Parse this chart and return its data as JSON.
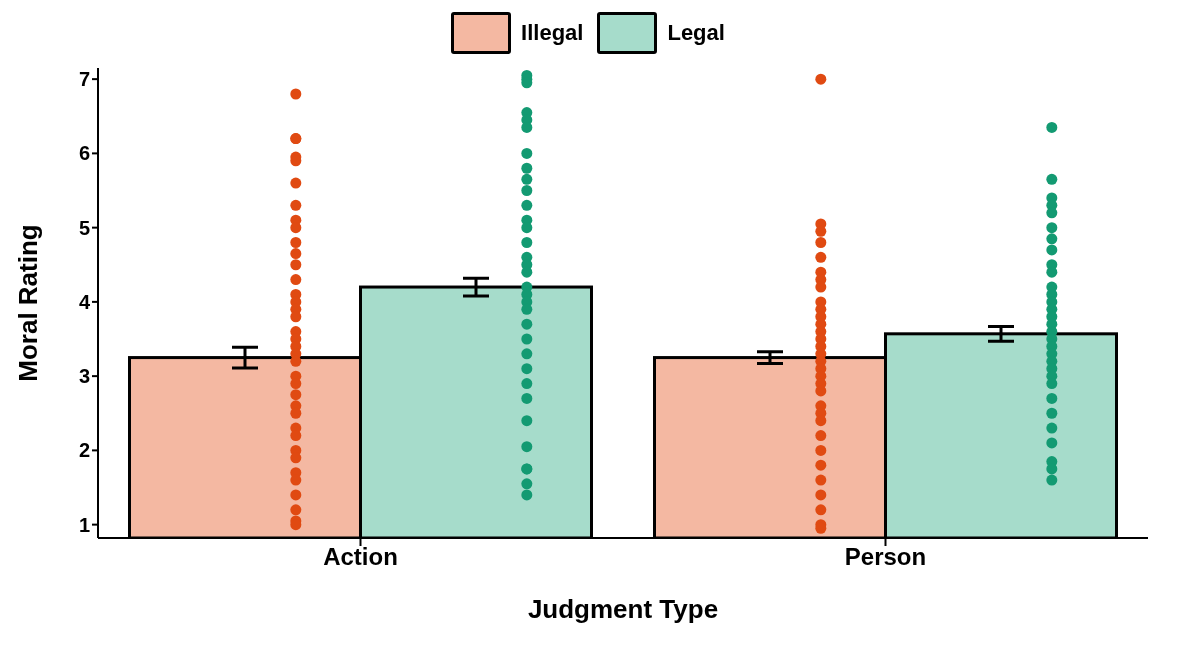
{
  "chart_data": {
    "type": "bar",
    "xlabel": "Judgment Type",
    "ylabel": "Moral Rating",
    "categories": [
      "Action",
      "Person"
    ],
    "ylim": [
      0.82,
      7.15
    ],
    "yticks": [
      1,
      2,
      3,
      4,
      5,
      6,
      7
    ],
    "grid": false,
    "legend": "top",
    "series": [
      {
        "name": "Illegal",
        "type": "bar",
        "color": "#f4b8a2",
        "values": [
          3.25,
          3.25
        ],
        "errors": [
          0.14,
          0.08
        ]
      },
      {
        "name": "Legal",
        "type": "bar",
        "color": "#a6dccb",
        "values": [
          4.2,
          3.57
        ],
        "errors": [
          0.12,
          0.1
        ]
      },
      {
        "type": "scatter",
        "color": "#e04a12",
        "marker": "circle",
        "x": [
          "Action",
          "Action",
          "Action",
          "Action",
          "Action",
          "Action",
          "Action",
          "Action",
          "Action",
          "Action",
          "Action",
          "Action",
          "Action",
          "Action",
          "Action",
          "Action",
          "Action",
          "Action",
          "Action",
          "Action",
          "Action",
          "Action",
          "Action",
          "Action",
          "Action",
          "Action",
          "Action",
          "Action",
          "Action",
          "Action",
          "Action",
          "Action",
          "Action",
          "Action",
          "Action",
          "Action",
          "Action",
          "Person",
          "Person",
          "Person",
          "Person",
          "Person",
          "Person",
          "Person",
          "Person",
          "Person",
          "Person",
          "Person",
          "Person",
          "Person",
          "Person",
          "Person",
          "Person",
          "Person",
          "Person",
          "Person",
          "Person",
          "Person",
          "Person",
          "Person",
          "Person",
          "Person",
          "Person",
          "Person",
          "Person",
          "Person",
          "Person",
          "Person",
          "Person"
        ],
        "values": [
          6.8,
          6.2,
          6.2,
          5.95,
          5.9,
          5.6,
          5.3,
          5.1,
          5.0,
          4.8,
          4.65,
          4.5,
          4.3,
          4.1,
          4.0,
          3.9,
          3.8,
          3.6,
          3.5,
          3.4,
          3.3,
          3.2,
          3.0,
          2.9,
          2.75,
          2.6,
          2.5,
          2.3,
          2.2,
          2.0,
          1.9,
          1.7,
          1.6,
          1.4,
          1.2,
          1.05,
          1.0,
          7.0,
          5.05,
          4.95,
          4.8,
          4.6,
          4.4,
          4.3,
          4.2,
          4.0,
          3.9,
          3.8,
          3.7,
          3.6,
          3.5,
          3.4,
          3.3,
          3.2,
          3.1,
          3.0,
          2.9,
          2.8,
          2.6,
          2.5,
          2.4,
          2.2,
          2.0,
          1.8,
          1.6,
          1.4,
          1.2,
          1.0,
          0.95
        ]
      },
      {
        "type": "scatter",
        "color": "#139a72",
        "marker": "circle",
        "x": [
          "Action",
          "Action",
          "Action",
          "Action",
          "Action",
          "Action",
          "Action",
          "Action",
          "Action",
          "Action",
          "Action",
          "Action",
          "Action",
          "Action",
          "Action",
          "Action",
          "Action",
          "Action",
          "Action",
          "Action",
          "Action",
          "Action",
          "Action",
          "Action",
          "Action",
          "Action",
          "Action",
          "Action",
          "Action",
          "Action",
          "Action",
          "Action",
          "Action",
          "Person",
          "Person",
          "Person",
          "Person",
          "Person",
          "Person",
          "Person",
          "Person",
          "Person",
          "Person",
          "Person",
          "Person",
          "Person",
          "Person",
          "Person",
          "Person",
          "Person",
          "Person",
          "Person",
          "Person",
          "Person",
          "Person",
          "Person",
          "Person",
          "Person",
          "Person",
          "Person",
          "Person",
          "Person",
          "Person",
          "Person"
        ],
        "values": [
          7.05,
          7.0,
          6.95,
          6.55,
          6.45,
          6.35,
          6.0,
          5.8,
          5.65,
          5.5,
          5.3,
          5.1,
          5.0,
          4.8,
          4.6,
          4.5,
          4.4,
          4.2,
          4.1,
          4.0,
          3.9,
          3.7,
          3.5,
          3.3,
          3.1,
          2.9,
          2.7,
          2.4,
          2.05,
          1.75,
          1.75,
          1.55,
          1.4,
          6.35,
          5.65,
          5.4,
          5.3,
          5.2,
          5.0,
          4.85,
          4.7,
          4.5,
          4.4,
          4.2,
          4.1,
          4.0,
          3.9,
          3.8,
          3.7,
          3.6,
          3.5,
          3.4,
          3.3,
          3.2,
          3.1,
          3.0,
          2.9,
          2.7,
          2.5,
          2.3,
          2.1,
          1.85,
          1.75,
          1.6
        ]
      }
    ]
  }
}
